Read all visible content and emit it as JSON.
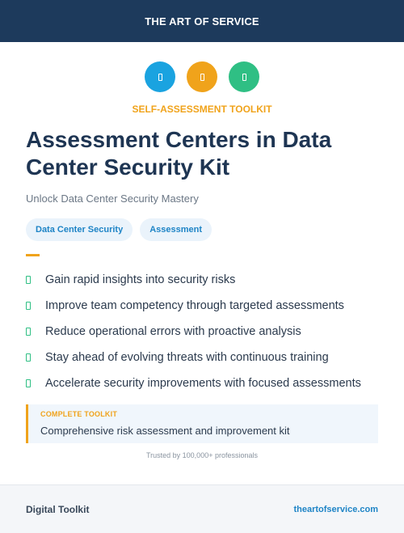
{
  "header": {
    "title": "THE ART OF SERVICE"
  },
  "icons": [
    {
      "name": "blue-icon",
      "color": "#1aa3e0"
    },
    {
      "name": "orange-icon",
      "color": "#f0a31b"
    },
    {
      "name": "green-icon",
      "color": "#2fbf84"
    }
  ],
  "kicker": "SELF-ASSESSMENT TOOLKIT",
  "title": "Assessment Centers in Data Center Security Kit",
  "subtitle": "Unlock Data Center Security Mastery",
  "tags": [
    "Data Center Security",
    "Assessment"
  ],
  "benefits": [
    "Gain rapid insights into security risks",
    "Improve team competency through targeted assessments",
    "Reduce operational errors with proactive analysis",
    "Stay ahead of evolving threats with continuous training",
    "Accelerate security improvements with focused assessments"
  ],
  "callout": {
    "label": "COMPLETE TOOLKIT",
    "text": "Comprehensive risk assessment and improvement kit"
  },
  "trust_text": "Trusted by 100,000+ professionals",
  "footer": {
    "left": "Digital Toolkit",
    "right": "theartofservice.com"
  },
  "colors": {
    "navy": "#1d3a5c",
    "accent": "#f0a31b",
    "link": "#1e84c6",
    "check": "#2fbf84"
  }
}
